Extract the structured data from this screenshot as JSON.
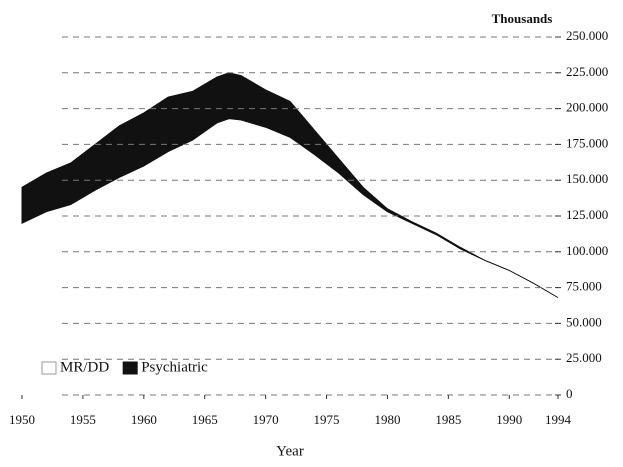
{
  "chart_data": {
    "type": "stacked_area",
    "y_unit_label": "Thousands",
    "xlabel": "Year",
    "x": [
      1950,
      1952,
      1954,
      1956,
      1958,
      1960,
      1962,
      1964,
      1966,
      1967,
      1968,
      1970,
      1972,
      1974,
      1976,
      1978,
      1980,
      1982,
      1984,
      1986,
      1988,
      1990,
      1992,
      1994
    ],
    "series": [
      {
        "name": "MR/DD",
        "color": "#ffffff",
        "values": [
          120000,
          128000,
          133000,
          143000,
          152000,
          160000,
          170000,
          178000,
          190000,
          193000,
          192000,
          187000,
          180000,
          168000,
          155000,
          140000,
          128000,
          120000,
          112000,
          102000,
          94000,
          87000,
          78000,
          68000
        ]
      },
      {
        "name": "Psychiatric",
        "color": "#111111",
        "values": [
          25000,
          27000,
          29000,
          32000,
          36000,
          37000,
          38000,
          34000,
          32000,
          32000,
          31000,
          26000,
          25000,
          17000,
          10000,
          5000,
          2000,
          1000,
          1000,
          1000,
          0,
          0,
          0,
          0
        ]
      }
    ],
    "xlim": [
      1950,
      1994
    ],
    "xticks": [
      1950,
      1955,
      1960,
      1965,
      1970,
      1975,
      1980,
      1985,
      1990,
      1994
    ],
    "ylim": [
      0,
      250000
    ],
    "yticks": [
      0,
      {
        "value": 25000,
        "label": "25.000"
      },
      {
        "value": 50000,
        "label": "50.000"
      },
      {
        "value": 75000,
        "label": "75.000"
      },
      {
        "value": 100000,
        "label": "100.000"
      },
      {
        "value": 125000,
        "label": "125.000"
      },
      {
        "value": 150000,
        "label": "150.000"
      },
      {
        "value": 175000,
        "label": "175.000"
      },
      {
        "value": 200000,
        "label": "200.000"
      },
      {
        "value": 225000,
        "label": "225.000"
      },
      {
        "value": 250000,
        "label": "250.000"
      }
    ],
    "y_axis_side": "right",
    "grid": true,
    "legend": "lower left"
  }
}
